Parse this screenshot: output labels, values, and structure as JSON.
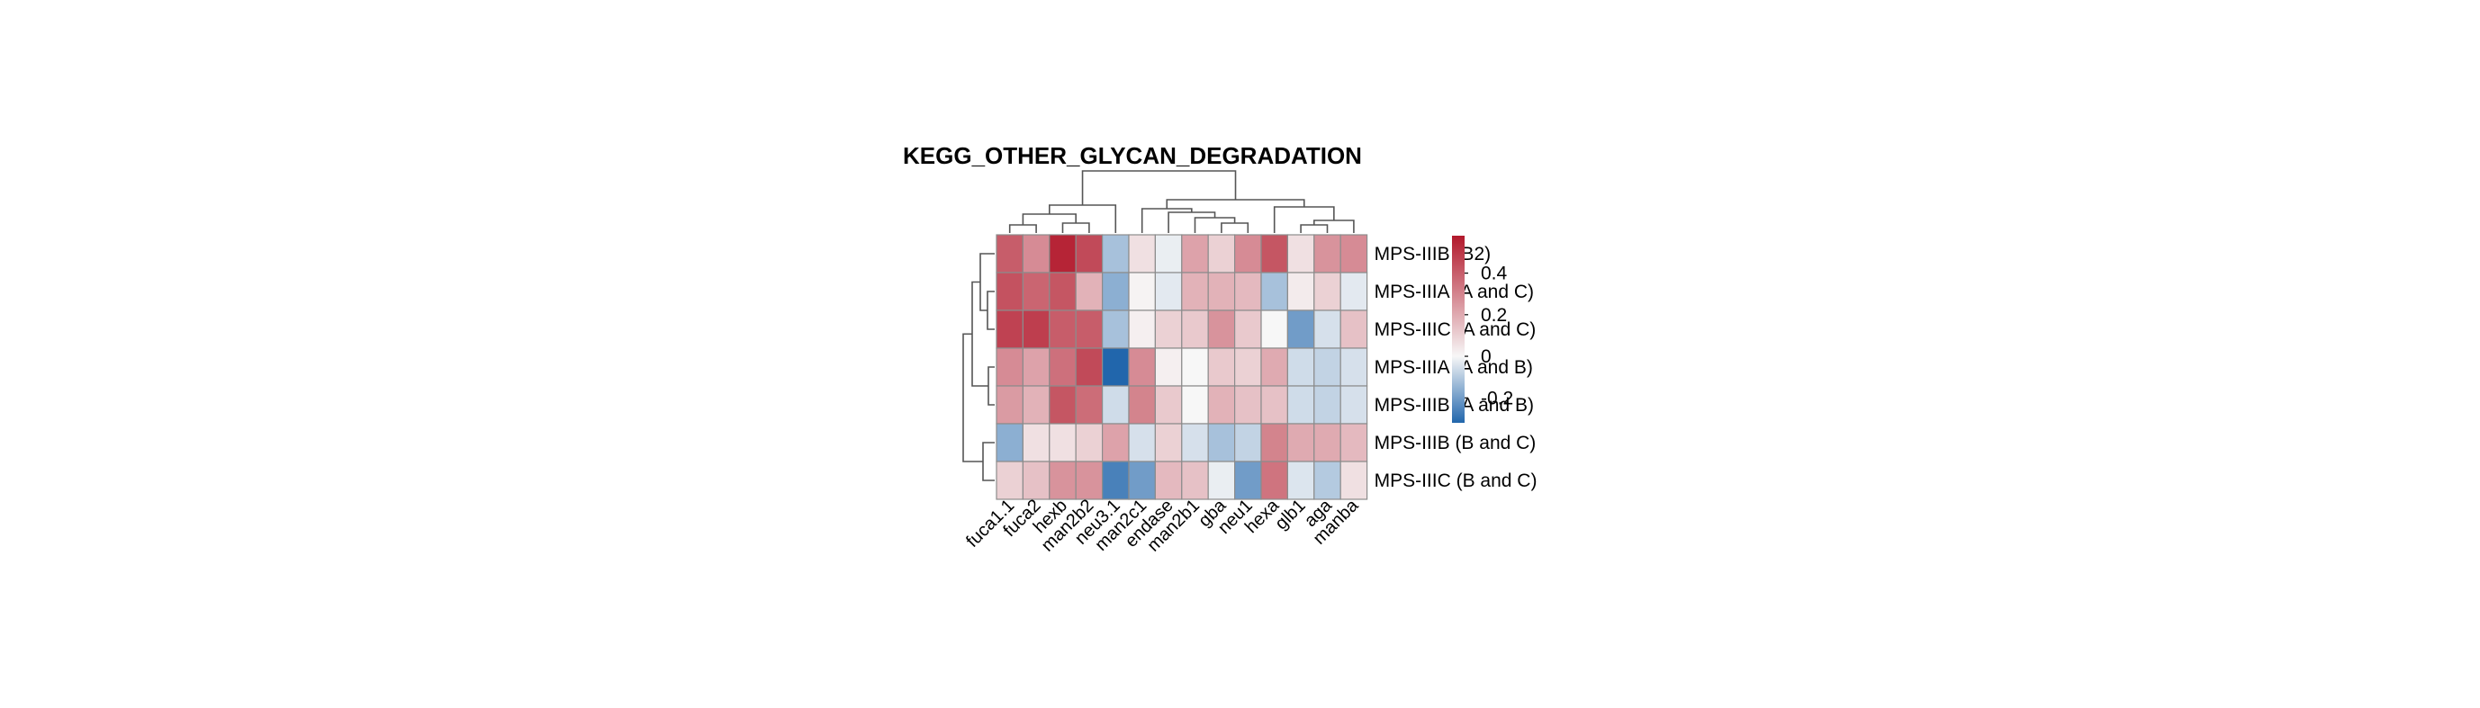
{
  "chart_data": {
    "type": "heatmap",
    "title": "KEGG_OTHER_GLYCAN_DEGRADATION",
    "columns": [
      "fuca1.1",
      "fuca2",
      "hexb",
      "man2b2",
      "neu3.1",
      "man2c1",
      "endase",
      "man2b1",
      "gba",
      "neu1",
      "hexa",
      "glb1",
      "aga",
      "manba"
    ],
    "rows": [
      "MPS-IIIB (B2)",
      "MPS-IIIA (A and C)",
      "MPS-IIIC (A and C)",
      "MPS-IIIA (A and B)",
      "MPS-IIIB (A and B)",
      "MPS-IIIB (B and C)",
      "MPS-IIIC (B and C)"
    ],
    "values": [
      [
        0.4,
        0.28,
        0.55,
        0.45,
        -0.12,
        0.06,
        -0.02,
        0.22,
        0.1,
        0.28,
        0.42,
        0.06,
        0.26,
        0.28
      ],
      [
        0.43,
        0.38,
        0.42,
        0.18,
        -0.16,
        0.01,
        -0.03,
        0.18,
        0.18,
        0.16,
        -0.12,
        0.03,
        0.1,
        -0.03
      ],
      [
        0.47,
        0.48,
        0.4,
        0.4,
        -0.12,
        0.02,
        0.1,
        0.12,
        0.26,
        0.12,
        0.0,
        -0.2,
        -0.05,
        0.14
      ],
      [
        0.28,
        0.22,
        0.35,
        0.45,
        -0.32,
        0.28,
        0.02,
        0.0,
        0.12,
        0.1,
        0.2,
        -0.06,
        -0.08,
        -0.05
      ],
      [
        0.24,
        0.18,
        0.42,
        0.36,
        -0.06,
        0.3,
        0.12,
        0.0,
        0.18,
        0.14,
        0.14,
        -0.06,
        -0.08,
        -0.05
      ],
      [
        -0.16,
        0.06,
        0.06,
        0.1,
        0.22,
        -0.05,
        0.1,
        -0.05,
        -0.12,
        -0.08,
        0.3,
        0.2,
        0.2,
        0.16
      ],
      [
        0.1,
        0.14,
        0.26,
        0.26,
        -0.26,
        -0.2,
        0.16,
        0.14,
        -0.02,
        -0.2,
        0.34,
        -0.04,
        -0.1,
        0.06
      ]
    ],
    "colorbar": {
      "min": -0.32,
      "max": 0.58,
      "ticks": [
        0.4,
        0.2,
        0,
        -0.2
      ],
      "tick_labels": [
        "0.4",
        "0.2",
        "0",
        "-0.2"
      ]
    },
    "colors": {
      "low": "#2166ac",
      "mid": "#f7f7f7",
      "high": "#b2182b"
    },
    "row_dendrogram": "left",
    "col_dendrogram": "top",
    "cell_border": "#8c8c8c"
  }
}
